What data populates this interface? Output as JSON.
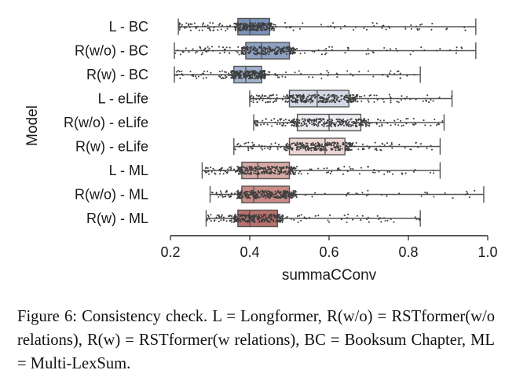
{
  "chart_data": {
    "type": "boxplot",
    "orientation": "horizontal",
    "xlabel": "summaCConv",
    "ylabel": "Model",
    "xlim": [
      0.2,
      1.0
    ],
    "xticks": [
      0.2,
      0.4,
      0.6,
      0.8,
      1.0
    ],
    "xtick_labels": [
      "0.2",
      "0.4",
      "0.6",
      "0.8",
      "1.0"
    ],
    "grid": false,
    "strip_points_overlay": true,
    "series": [
      {
        "name": "L - BC",
        "whisker_low": 0.22,
        "q1": 0.37,
        "median": 0.4,
        "q3": 0.45,
        "whisker_high": 0.97,
        "color": "#7b93b9"
      },
      {
        "name": "R(w/o) - BC",
        "whisker_low": 0.21,
        "q1": 0.39,
        "median": 0.43,
        "q3": 0.5,
        "whisker_high": 0.97,
        "color": "#8ea2c4"
      },
      {
        "name": "R(w) - BC",
        "whisker_low": 0.21,
        "q1": 0.36,
        "median": 0.39,
        "q3": 0.43,
        "whisker_high": 0.83,
        "color": "#a2b2cd"
      },
      {
        "name": "L - eLife",
        "whisker_low": 0.4,
        "q1": 0.5,
        "median": 0.57,
        "q3": 0.65,
        "whisker_high": 0.91,
        "color": "#d3d9e6"
      },
      {
        "name": "R(w/o) - eLife",
        "whisker_low": 0.41,
        "q1": 0.52,
        "median": 0.6,
        "q3": 0.68,
        "whisker_high": 0.89,
        "color": "#eceef2"
      },
      {
        "name": "R(w) - eLife",
        "whisker_low": 0.36,
        "q1": 0.5,
        "median": 0.59,
        "q3": 0.64,
        "whisker_high": 0.88,
        "color": "#ecd5d3"
      },
      {
        "name": "L - ML",
        "whisker_low": 0.28,
        "q1": 0.38,
        "median": 0.42,
        "q3": 0.5,
        "whisker_high": 0.88,
        "color": "#d8aaa5"
      },
      {
        "name": "R(w/o) - ML",
        "whisker_low": 0.3,
        "q1": 0.38,
        "median": 0.41,
        "q3": 0.5,
        "whisker_high": 0.99,
        "color": "#c88b86"
      },
      {
        "name": "R(w) - ML",
        "whisker_low": 0.29,
        "q1": 0.37,
        "median": 0.4,
        "q3": 0.47,
        "whisker_high": 0.83,
        "color": "#b9716c"
      }
    ]
  },
  "caption": "Figure 6: Consistency check. L = Longformer, R(w/o) = RSTformer(w/o relations), R(w) = RSTformer(w relations), BC = Booksum Chapter, ML = Multi-LexSum."
}
